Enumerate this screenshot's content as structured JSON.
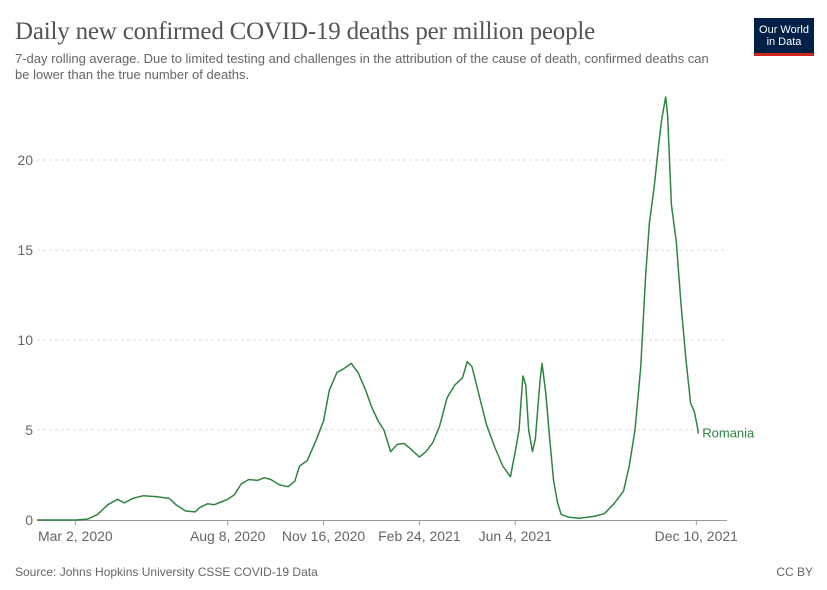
{
  "header": {
    "title": "Daily new confirmed COVID-19 deaths per million people",
    "subtitle": "7-day rolling average. Due to limited testing and challenges in the attribution of the cause of death, confirmed deaths can be lower than the true number of deaths.",
    "logo_line1": "Our World",
    "logo_line2": "in Data"
  },
  "footer": {
    "source": "Source: Johns Hopkins University CSSE COVID-19 Data",
    "license": "CC BY"
  },
  "colors": {
    "series": "#2e8540",
    "grid": "#dddddd",
    "axis": "#999999",
    "logo_bg": "#002147",
    "logo_accent": "#ce261e"
  },
  "chart_data": {
    "type": "line",
    "title": "Daily new confirmed COVID-19 deaths per million people",
    "subtitle": "7-day rolling average. Due to limited testing and challenges in the attribution of the cause of death, confirmed deaths can be lower than the true number of deaths.",
    "xlabel": "",
    "ylabel": "",
    "xlim": [
      "2020-01-22",
      "2022-01-11"
    ],
    "ylim": [
      0,
      23.5
    ],
    "yticks": [
      0,
      5,
      10,
      15,
      20
    ],
    "xticks": [
      "2020-03-02",
      "2020-08-08",
      "2020-11-16",
      "2021-02-24",
      "2021-06-04",
      "2021-12-10"
    ],
    "xtick_labels": [
      "Mar 2, 2020",
      "Aug 8, 2020",
      "Nov 16, 2020",
      "Feb 24, 2021",
      "Jun 4, 2021",
      "Dec 10, 2021"
    ],
    "grid": "horizontal dashed",
    "series": [
      {
        "name": "Romania",
        "points": [
          [
            "2020-01-22",
            0
          ],
          [
            "2020-02-15",
            0
          ],
          [
            "2020-03-02",
            0
          ],
          [
            "2020-03-15",
            0.05
          ],
          [
            "2020-03-25",
            0.3
          ],
          [
            "2020-04-05",
            0.85
          ],
          [
            "2020-04-15",
            1.15
          ],
          [
            "2020-04-22",
            0.95
          ],
          [
            "2020-05-01",
            1.2
          ],
          [
            "2020-05-12",
            1.35
          ],
          [
            "2020-05-25",
            1.3
          ],
          [
            "2020-06-08",
            1.2
          ],
          [
            "2020-06-15",
            0.85
          ],
          [
            "2020-06-25",
            0.5
          ],
          [
            "2020-07-05",
            0.45
          ],
          [
            "2020-07-10",
            0.7
          ],
          [
            "2020-07-18",
            0.9
          ],
          [
            "2020-07-25",
            0.85
          ],
          [
            "2020-08-01",
            1.0
          ],
          [
            "2020-08-08",
            1.15
          ],
          [
            "2020-08-15",
            1.4
          ],
          [
            "2020-08-22",
            2.0
          ],
          [
            "2020-08-30",
            2.25
          ],
          [
            "2020-09-08",
            2.2
          ],
          [
            "2020-09-15",
            2.35
          ],
          [
            "2020-09-22",
            2.25
          ],
          [
            "2020-10-01",
            1.95
          ],
          [
            "2020-10-10",
            1.85
          ],
          [
            "2020-10-17",
            2.15
          ],
          [
            "2020-10-22",
            3.0
          ],
          [
            "2020-10-30",
            3.3
          ],
          [
            "2020-11-08",
            4.4
          ],
          [
            "2020-11-16",
            5.5
          ],
          [
            "2020-11-22",
            7.2
          ],
          [
            "2020-11-30",
            8.2
          ],
          [
            "2020-12-07",
            8.4
          ],
          [
            "2020-12-15",
            8.7
          ],
          [
            "2020-12-22",
            8.2
          ],
          [
            "2020-12-30",
            7.2
          ],
          [
            "2021-01-05",
            6.3
          ],
          [
            "2021-01-12",
            5.5
          ],
          [
            "2021-01-18",
            5.0
          ],
          [
            "2021-01-25",
            3.8
          ],
          [
            "2021-02-01",
            4.2
          ],
          [
            "2021-02-08",
            4.25
          ],
          [
            "2021-02-15",
            3.95
          ],
          [
            "2021-02-24",
            3.5
          ],
          [
            "2021-03-03",
            3.8
          ],
          [
            "2021-03-10",
            4.3
          ],
          [
            "2021-03-17",
            5.2
          ],
          [
            "2021-03-25",
            6.8
          ],
          [
            "2021-04-02",
            7.5
          ],
          [
            "2021-04-10",
            7.9
          ],
          [
            "2021-04-15",
            8.8
          ],
          [
            "2021-04-20",
            8.5
          ],
          [
            "2021-04-27",
            7.0
          ],
          [
            "2021-05-05",
            5.3
          ],
          [
            "2021-05-14",
            4.0
          ],
          [
            "2021-05-22",
            3.0
          ],
          [
            "2021-05-30",
            2.4
          ],
          [
            "2021-06-04",
            3.8
          ],
          [
            "2021-06-08",
            5.0
          ],
          [
            "2021-06-12",
            8.0
          ],
          [
            "2021-06-15",
            7.5
          ],
          [
            "2021-06-18",
            5.0
          ],
          [
            "2021-06-22",
            3.8
          ],
          [
            "2021-06-25",
            4.5
          ],
          [
            "2021-06-30",
            7.8
          ],
          [
            "2021-07-02",
            8.7
          ],
          [
            "2021-07-06",
            7.0
          ],
          [
            "2021-07-10",
            4.5
          ],
          [
            "2021-07-14",
            2.2
          ],
          [
            "2021-07-18",
            1.0
          ],
          [
            "2021-07-22",
            0.3
          ],
          [
            "2021-07-30",
            0.15
          ],
          [
            "2021-08-10",
            0.1
          ],
          [
            "2021-08-25",
            0.2
          ],
          [
            "2021-09-05",
            0.35
          ],
          [
            "2021-09-15",
            0.9
          ],
          [
            "2021-09-25",
            1.6
          ],
          [
            "2021-10-01",
            3.0
          ],
          [
            "2021-10-07",
            5.0
          ],
          [
            "2021-10-13",
            8.5
          ],
          [
            "2021-10-18",
            13.5
          ],
          [
            "2021-10-22",
            16.5
          ],
          [
            "2021-10-27",
            18.5
          ],
          [
            "2021-11-01",
            21.0
          ],
          [
            "2021-11-04",
            22.3
          ],
          [
            "2021-11-08",
            23.5
          ],
          [
            "2021-11-10",
            22.5
          ],
          [
            "2021-11-14",
            17.5
          ],
          [
            "2021-11-19",
            15.5
          ],
          [
            "2021-11-24",
            12.0
          ],
          [
            "2021-11-29",
            9.0
          ],
          [
            "2021-12-04",
            6.5
          ],
          [
            "2021-12-08",
            6.0
          ],
          [
            "2021-12-11",
            5.2
          ],
          [
            "2021-12-12",
            4.8
          ]
        ]
      }
    ]
  }
}
